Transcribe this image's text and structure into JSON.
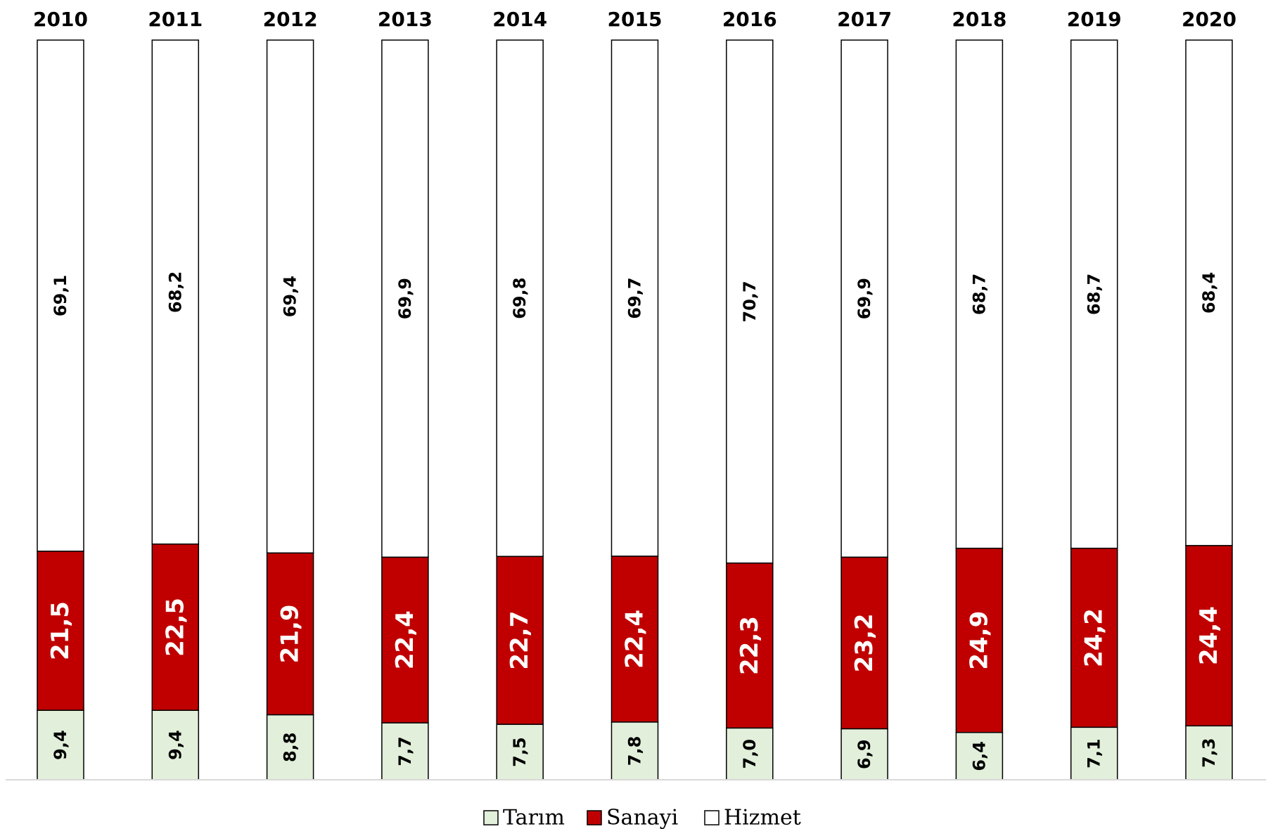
{
  "chart_data": {
    "type": "bar",
    "stacked": true,
    "percent_stacked": true,
    "categories": [
      "2010",
      "2011",
      "2012",
      "2013",
      "2014",
      "2015",
      "2016",
      "2017",
      "2018",
      "2019",
      "2020"
    ],
    "series": [
      {
        "name": "Tarım",
        "color": "#e2efda",
        "values": [
          9.4,
          9.4,
          8.8,
          7.7,
          7.5,
          7.8,
          7.0,
          6.9,
          6.4,
          7.1,
          7.3
        ],
        "labels": [
          "9,4",
          "9,4",
          "8,8",
          "7,7",
          "7,5",
          "7,8",
          "7,0",
          "6,9",
          "6,4",
          "7,1",
          "7,3"
        ]
      },
      {
        "name": "Sanayi",
        "color": "#c00000",
        "values": [
          21.5,
          22.5,
          21.9,
          22.4,
          22.7,
          22.4,
          22.3,
          23.2,
          24.9,
          24.2,
          24.4
        ],
        "labels": [
          "21,5",
          "22,5",
          "21,9",
          "22,4",
          "22,7",
          "22,4",
          "22,3",
          "23,2",
          "24,9",
          "24,2",
          "24,4"
        ]
      },
      {
        "name": "Hizmet",
        "color": "#ffffff",
        "values": [
          69.1,
          68.2,
          69.4,
          69.9,
          69.8,
          69.7,
          70.7,
          69.9,
          68.7,
          68.7,
          68.4
        ],
        "labels": [
          "69,1",
          "68,2",
          "69,4",
          "69,9",
          "69,8",
          "69,7",
          "70,7",
          "69,9",
          "68,7",
          "68,7",
          "68,4"
        ]
      }
    ],
    "category_axis_position": "top",
    "data_label_orientation": "vertical",
    "legend_position": "bottom",
    "grid": false,
    "title": "",
    "xlabel": "",
    "ylabel": ""
  },
  "legend": {
    "items": [
      {
        "label": "Tarım",
        "color": "#e2efda"
      },
      {
        "label": "Sanayi",
        "color": "#c00000"
      },
      {
        "label": "Hizmet",
        "color": "#ffffff"
      }
    ]
  }
}
